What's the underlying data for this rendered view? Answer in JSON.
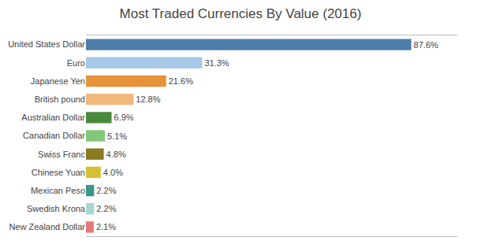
{
  "chart_data": {
    "type": "bar",
    "orientation": "horizontal",
    "title": "Most Traded Currencies By Value (2016)",
    "categories": [
      "United States Dollar",
      "Euro",
      "Japanese Yen",
      "British pound",
      "Australian Dollar",
      "Canadian Dollar",
      "Swiss Franc",
      "Chinese Yuan",
      "Mexican Peso",
      "Swedish Krona",
      "New Zealand Dollar"
    ],
    "values": [
      87.6,
      31.3,
      21.6,
      12.8,
      6.9,
      5.1,
      4.8,
      4.0,
      2.2,
      2.2,
      2.1
    ],
    "value_labels": [
      "87.6%",
      "31.3%",
      "21.6%",
      "12.8%",
      "6.9%",
      "5.1%",
      "4.8%",
      "4.0%",
      "2.2%",
      "2.2%",
      "2.1%"
    ],
    "colors": [
      "#4d7ea8",
      "#a8c8e8",
      "#e8923a",
      "#f0b87a",
      "#4a8a3c",
      "#82c878",
      "#8a7a20",
      "#d4c030",
      "#3a9688",
      "#a8d8d0",
      "#e87878"
    ],
    "xlim": [
      0,
      100
    ],
    "xticks": [],
    "grid": false,
    "data_labels": true,
    "tick_labels": "y"
  }
}
